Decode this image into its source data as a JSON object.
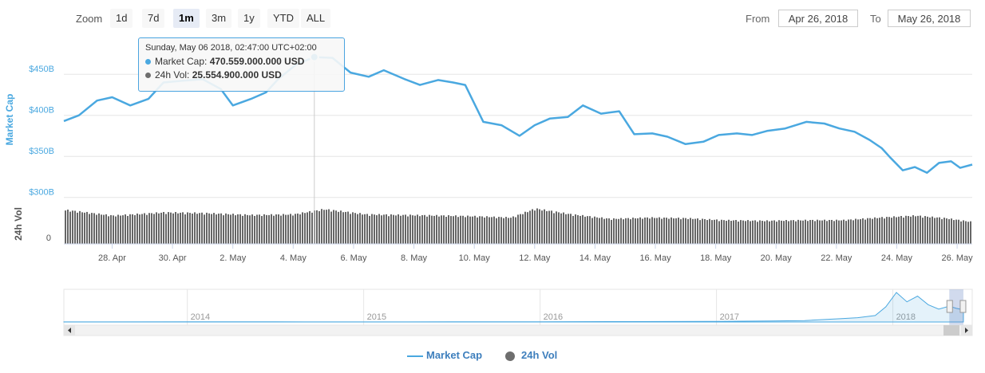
{
  "toolbar": {
    "zoom_label": "Zoom",
    "zoom_buttons": [
      "1d",
      "7d",
      "1m",
      "3m",
      "1y",
      "YTD",
      "ALL"
    ],
    "active_zoom": "1m",
    "from_label": "From",
    "from_value": "Apr 26, 2018",
    "to_label": "To",
    "to_value": "May 26, 2018"
  },
  "tooltip": {
    "date": "Sunday, May 06 2018, 02:47:00 UTC+02:00",
    "market_cap_label": "Market Cap:",
    "market_cap_value": "470.559.000.000 USD",
    "volume_label": "24h Vol:",
    "volume_value": "25.554.900.000 USD"
  },
  "colors": {
    "market_cap": "#4aa8e0",
    "volume": "#6e6e6e",
    "accent": "#3e7fbd"
  },
  "legend": {
    "market_cap": "Market Cap",
    "volume": "24h Vol"
  },
  "chart_data": {
    "type": "line",
    "y_axis_title": "Market Cap",
    "y_ticks": [
      "$450B",
      "$400B",
      "$350B",
      "$300B"
    ],
    "y_tick_values": [
      450,
      400,
      350,
      300
    ],
    "ylim": [
      290,
      490
    ],
    "volume_axis_title": "24h Vol",
    "volume_tick": "0",
    "x_ticks": [
      "28. Apr",
      "30. Apr",
      "2. May",
      "4. May",
      "6. May",
      "8. May",
      "10. May",
      "12. May",
      "14. May",
      "16. May",
      "18. May",
      "20. May",
      "22. May",
      "24. May",
      "26. May"
    ],
    "x_tick_days": [
      2,
      4,
      6,
      8,
      10,
      12,
      14,
      16,
      18,
      20,
      22,
      24,
      26,
      28,
      30
    ],
    "xlim": [
      0.4,
      30.5
    ],
    "series": [
      {
        "name": "Market Cap",
        "x": [
          0.4,
          0.9,
          1.5,
          2.0,
          2.6,
          3.2,
          3.7,
          4.3,
          5.0,
          5.6,
          6.0,
          6.6,
          7.1,
          7.5,
          8.1,
          8.7,
          9.3,
          9.9,
          10.5,
          11.0,
          11.7,
          12.2,
          12.8,
          13.3,
          13.7,
          14.3,
          14.9,
          15.5,
          16.0,
          16.5,
          17.1,
          17.6,
          18.2,
          18.8,
          19.3,
          19.9,
          20.4,
          21.0,
          21.6,
          22.1,
          22.7,
          23.2,
          23.7,
          24.3,
          25.0,
          25.6,
          26.1,
          26.6,
          27.1,
          27.5,
          27.8,
          28.2,
          28.6,
          29.0,
          29.4,
          29.8,
          30.1,
          30.5
        ],
        "values": [
          393,
          400,
          418,
          422,
          412,
          420,
          440,
          442,
          444,
          432,
          412,
          420,
          428,
          444,
          462,
          471,
          470,
          452,
          447,
          455,
          444,
          437,
          443,
          440,
          437,
          392,
          388,
          375,
          388,
          396,
          398,
          412,
          402,
          405,
          377,
          378,
          374,
          365,
          368,
          376,
          378,
          376,
          381,
          384,
          392,
          390,
          384,
          380,
          370,
          360,
          348,
          333,
          337,
          330,
          342,
          344,
          336,
          340
        ]
      },
      {
        "name": "24h Vol",
        "x": [
          0.4,
          2.0,
          3.7,
          5.0,
          6.6,
          8.0,
          9.0,
          10.4,
          11.6,
          13.0,
          14.0,
          15.2,
          16.0,
          17.2,
          18.5,
          19.8,
          21.0,
          22.2,
          23.6,
          25.0,
          26.2,
          27.4,
          28.6,
          29.6,
          30.5
        ],
        "values": [
          26.5,
          22.0,
          24.5,
          24.0,
          22.5,
          23.0,
          27.0,
          23.0,
          22.5,
          22.0,
          21.5,
          20.5,
          27.5,
          23.0,
          19.5,
          20.5,
          20.0,
          18.5,
          18.0,
          18.5,
          18.5,
          20.5,
          22.0,
          20.0,
          17.0
        ]
      }
    ]
  },
  "navigator": {
    "year_labels": [
      "2014",
      "2015",
      "2016",
      "2017",
      "2018"
    ],
    "year_x": [
      2014,
      2015,
      2016,
      2017,
      2018
    ],
    "x_range": [
      2013.3,
      2018.45
    ],
    "selected_range": [
      2018.32,
      2018.4
    ],
    "series_x": [
      2013.3,
      2014.0,
      2014.5,
      2015.0,
      2015.5,
      2016.0,
      2016.5,
      2017.0,
      2017.3,
      2017.5,
      2017.7,
      2017.8,
      2017.9,
      2017.96,
      2018.02,
      2018.08,
      2018.14,
      2018.2,
      2018.26,
      2018.32,
      2018.36,
      2018.4
    ],
    "series_values": [
      1.6,
      7,
      5,
      3,
      4,
      7,
      12,
      18,
      28,
      40,
      90,
      120,
      180,
      420,
      820,
      560,
      720,
      480,
      360,
      440,
      380,
      340
    ]
  }
}
